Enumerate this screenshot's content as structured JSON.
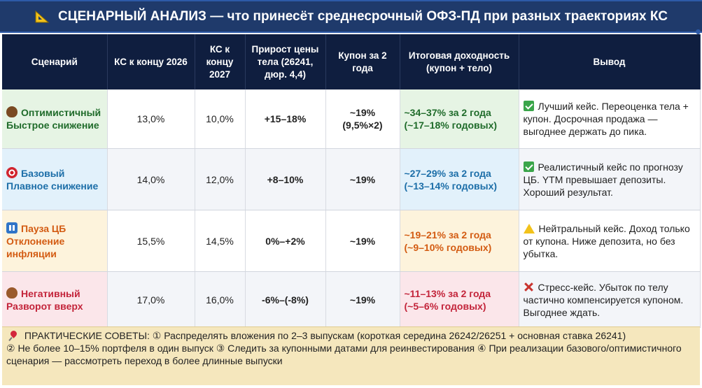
{
  "title": "СЦЕНАРНЫЙ АНАЛИЗ — что принесёт среднесрочный ОФЗ-ПД при разных траекториях КС",
  "headers": [
    "Сценарий",
    "КС к концу 2026",
    "КС к концу 2027",
    "Прирост цены тела (26241, дюр. 4,4)",
    "Купон за 2 года",
    "Итоговая доходность (купон + тело)",
    "Вывод"
  ],
  "rows": [
    {
      "icon": "bull-icon",
      "scenario_line1": "Оптимистичный",
      "scenario_line2": "Быстрое снижение",
      "ks2026": "13,0%",
      "ks2027": "10,0%",
      "price_growth": "+15–18%",
      "coupon": "~19% (9,5%×2)",
      "yield_line1": "~34–37% за 2 года",
      "yield_line2": "(~17–18% годовых)",
      "conclusion_icon": "check-icon",
      "conclusion": "Лучший кейс. Переоценка тела + купон. Досрочная продажа — выгоднее держать до пика."
    },
    {
      "icon": "target-icon",
      "scenario_line1": "Базовый",
      "scenario_line2": "Плавное снижение",
      "ks2026": "14,0%",
      "ks2027": "12,0%",
      "price_growth": "+8–10%",
      "coupon": "~19%",
      "yield_line1": "~27–29% за 2 года",
      "yield_line2": "(~13–14% годовых)",
      "conclusion_icon": "check-icon",
      "conclusion": "Реалистичный кейс по прогнозу ЦБ. YTM превышает депозиты. Хороший результат."
    },
    {
      "icon": "pause-icon",
      "scenario_line1": "Пауза ЦБ",
      "scenario_line2": "Отклонение инфляции",
      "ks2026": "15,5%",
      "ks2027": "14,5%",
      "price_growth": "0%–+2%",
      "coupon": "~19%",
      "yield_line1": "~19–21% за 2 года",
      "yield_line2": "(~9–10% годовых)",
      "conclusion_icon": "warning-icon",
      "conclusion": "Нейтральный кейс. Доход только от купона. Ниже депозита, но без убытка."
    },
    {
      "icon": "bear-icon",
      "scenario_line1": "Негативный",
      "scenario_line2": "Разворот вверх",
      "ks2026": "17,0%",
      "ks2027": "16,0%",
      "price_growth": "-6%–(-8%)",
      "coupon": "~19%",
      "yield_line1": "~11–13% за 2 года",
      "yield_line2": "(~5–6% годовых)",
      "conclusion_icon": "cross-icon",
      "conclusion": "Стресс-кейс. Убыток по телу частично компенсируется купоном. Выгоднее ждать."
    }
  ],
  "tips": {
    "label": "ПРАКТИЧЕСКИЕ СОВЕТЫ:",
    "text1": "① Распределять вложения по 2–3 выпускам (короткая середина 26242/26251 + основная ставка 26241)",
    "text2": "② Не более 10–15% портфеля в один выпуск  ③ Следить за купонными датами для реинвестирования  ④ При реализации базового/оптимистичного сценария — рассмотреть переход в более длинные выпуски"
  }
}
